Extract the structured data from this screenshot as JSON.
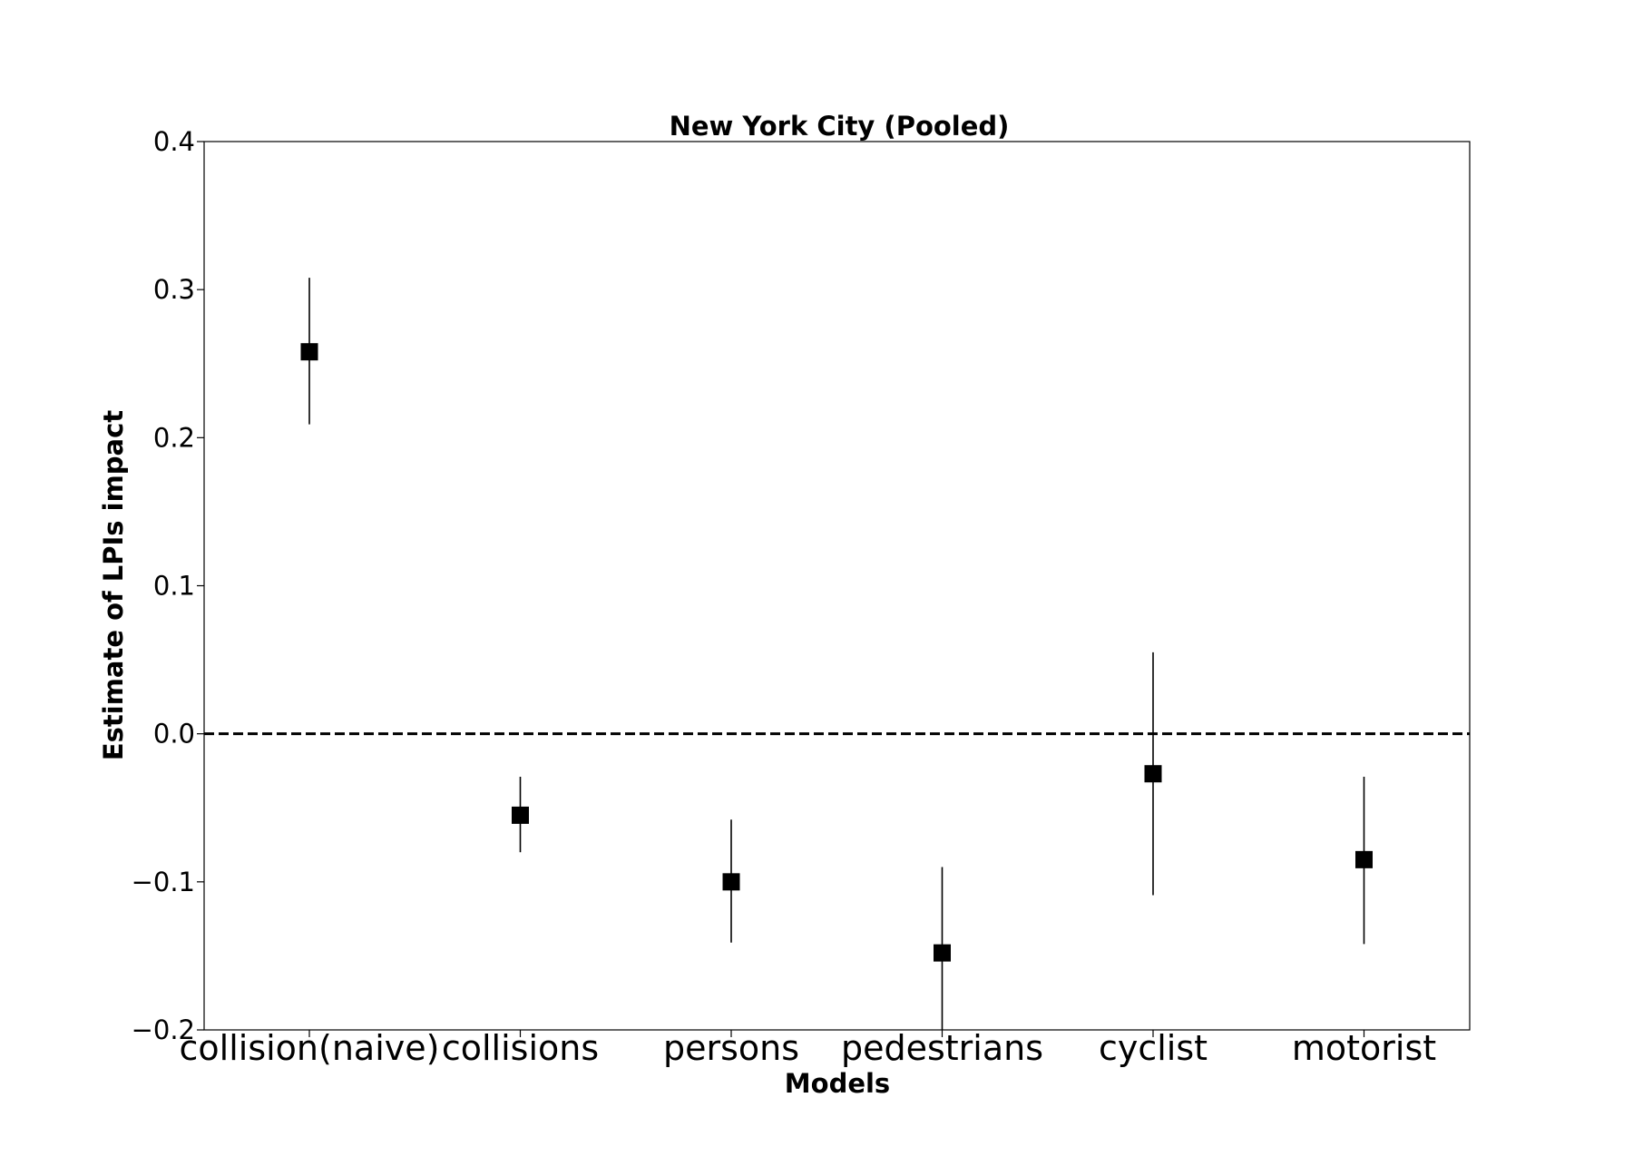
{
  "chart_data": {
    "type": "scatter",
    "title": "New York City (Pooled)",
    "xlabel": "Models",
    "ylabel": "Estimate of LPIs impact",
    "categories": [
      "collision(naive)",
      "collisions",
      "persons",
      "pedestrians",
      "cyclist",
      "motorist"
    ],
    "values": [
      0.258,
      -0.055,
      -0.1,
      -0.148,
      -0.027,
      -0.085
    ],
    "ci_lower": [
      0.209,
      -0.08,
      -0.141,
      -0.2,
      -0.109,
      -0.142
    ],
    "ci_upper": [
      0.308,
      -0.029,
      -0.058,
      -0.09,
      0.055,
      -0.029
    ],
    "ylim": [
      -0.2,
      0.4
    ],
    "yticks": [
      0.4,
      0.3,
      0.2,
      0.1,
      0.0,
      -0.1,
      -0.2
    ],
    "ytick_labels": [
      "0.4",
      "0.3",
      "0.2",
      "0.1",
      "0.0",
      "−0.1",
      "−0.2"
    ],
    "reference_line": 0.0,
    "marker": "square",
    "marker_color": "#000000",
    "grid": false
  }
}
